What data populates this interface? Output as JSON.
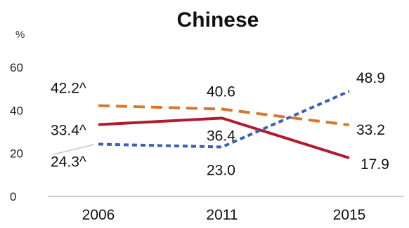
{
  "chart_data": {
    "type": "line",
    "title": "Chinese",
    "ylabel": "%",
    "xlabel": "",
    "ylim": [
      0,
      60
    ],
    "yticks": [
      0,
      20,
      40,
      60
    ],
    "categories": [
      "2006",
      "2011",
      "2015"
    ],
    "grid": false,
    "legend": "none",
    "series": [
      {
        "values": [
          42.2,
          40.6,
          33.2
        ],
        "labels": [
          "42.2^",
          "40.6",
          "33.2"
        ],
        "color": "#d9782d",
        "style": "long-dash"
      },
      {
        "values": [
          33.4,
          36.4,
          17.9
        ],
        "labels": [
          "33.4^",
          "36.4",
          "17.9"
        ],
        "color": "#b01c2e",
        "style": "solid"
      },
      {
        "values": [
          24.3,
          23.0,
          48.9
        ],
        "labels": [
          "24.3^",
          "23.0",
          "48.9"
        ],
        "color": "#3c5fb4",
        "style": "short-dash"
      }
    ]
  }
}
